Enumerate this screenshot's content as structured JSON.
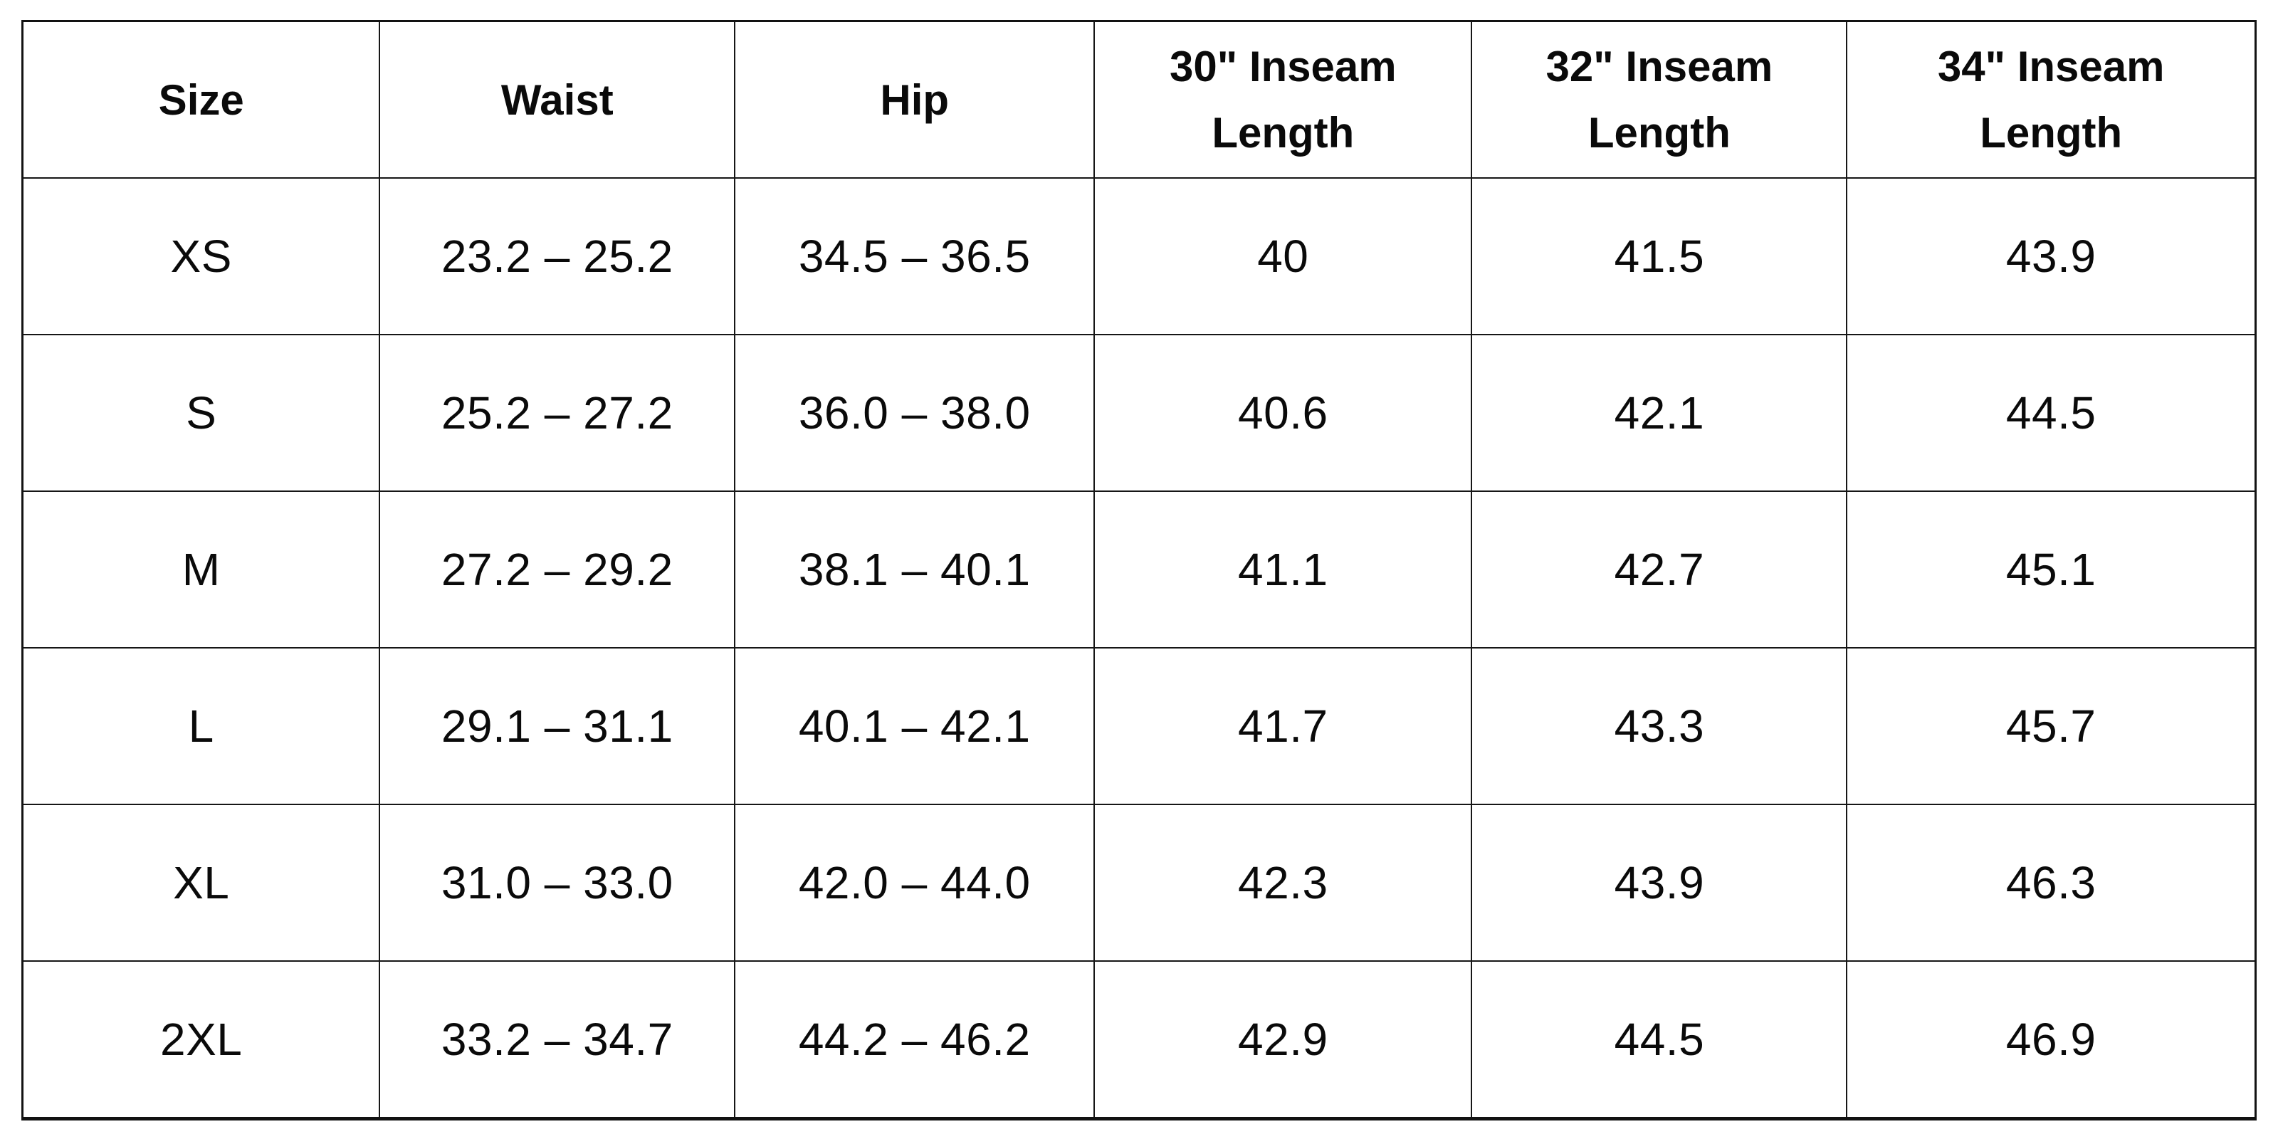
{
  "chart_data": {
    "type": "table",
    "columns": [
      "Size",
      "Waist",
      "Hip",
      "30\" Inseam Length",
      "32\" Inseam Length",
      "34\" Inseam Length"
    ],
    "rows": [
      [
        "XS",
        "23.2 – 25.2",
        "34.5 – 36.5",
        "40",
        "41.5",
        "43.9"
      ],
      [
        "S",
        "25.2 – 27.2",
        "36.0 – 38.0",
        "40.6",
        "42.1",
        "44.5"
      ],
      [
        "M",
        "27.2 – 29.2",
        "38.1 – 40.1",
        "41.1",
        "42.7",
        "45.1"
      ],
      [
        "L",
        "29.1 – 31.1",
        "40.1 – 42.1",
        "41.7",
        "43.3",
        "45.7"
      ],
      [
        "XL",
        "31.0 – 33.0",
        "42.0 – 44.0",
        "42.3",
        "43.9",
        "46.3"
      ],
      [
        "2XL",
        "33.2 – 34.7",
        "44.2 – 46.2",
        "42.9",
        "44.5",
        "46.9"
      ]
    ],
    "layout": {
      "grid": "on",
      "border_color": "#161616",
      "background": "#ffffff",
      "text_color": "#0a0a0a",
      "header_style": "bold-centered",
      "units": "inches"
    }
  }
}
